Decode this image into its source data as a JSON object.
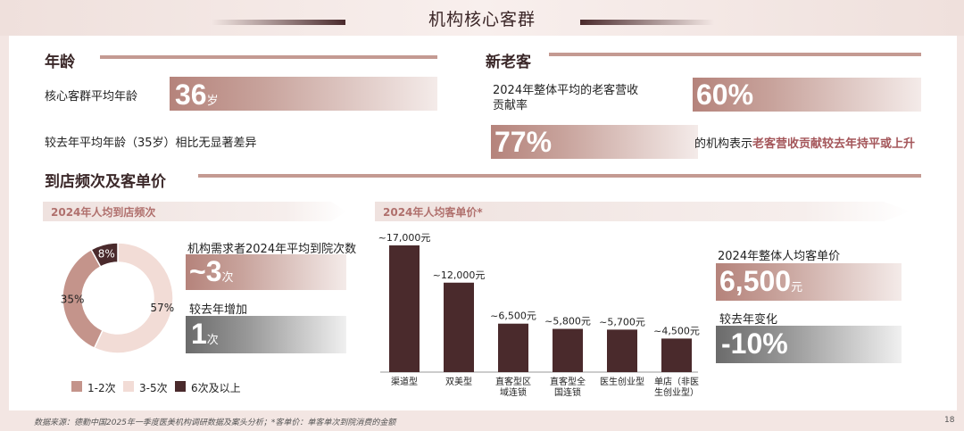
{
  "header": {
    "title": "机构核心客群"
  },
  "age": {
    "title": "年龄",
    "avg_label": "核心客群平均年龄",
    "avg_value": "36",
    "avg_unit": "岁",
    "compare_text": "较去年平均年龄（35岁）相比无显著差异"
  },
  "new_old": {
    "title": "新老客",
    "contribution_label_1": "2024年整体平均的老客营收",
    "contribution_label_2": "贡献率",
    "contribution_value": "60%",
    "share_value": "77%",
    "share_text_prefix": "的机构表示",
    "share_text_highlight": "老客营收贡献较去年持平或上升"
  },
  "visits_price": {
    "title": "到店频次及客单价",
    "freq_subhead": "2024年人均到店频次",
    "price_subhead": "2024年人均客单价*",
    "freq_need_label": "机构需求者2024年平均到院次数",
    "freq_need_value": "~3",
    "freq_need_unit": "次",
    "freq_increase_label": "较去年增加",
    "freq_increase_value": "1",
    "freq_increase_unit": "次",
    "price_overall_label": "2024年整体人均客单价",
    "price_overall_value": "6,500",
    "price_overall_unit": "元",
    "price_change_label": "较去年变化",
    "price_change_value": "-10%"
  },
  "colors": {
    "dark": "#4a2a2c",
    "mid": "#c4948b",
    "light": "#f0d8d2",
    "accent": "#a4565a"
  },
  "chart_data": [
    {
      "type": "pie",
      "title": "2024年人均到店频次",
      "categories": [
        "1-2次",
        "3-5次",
        "6次及以上"
      ],
      "values": [
        35,
        57,
        8
      ],
      "value_labels": [
        "35%",
        "57%",
        "8%"
      ],
      "colors": [
        "#c4948b",
        "#f2dcd6",
        "#4a2a2c"
      ],
      "legend": "bottom"
    },
    {
      "type": "bar",
      "title": "2024年人均客单价*",
      "categories": [
        "渠道型",
        "双美型",
        "直客型区域连锁",
        "直客型全国连锁",
        "医生创业型",
        "单店（非医生创业型）"
      ],
      "category_lines": [
        [
          "渠道型"
        ],
        [
          "双美型"
        ],
        [
          "直客型区",
          "域连锁"
        ],
        [
          "直客型全",
          "国连锁"
        ],
        [
          "医生创业型"
        ],
        [
          "单店（非医",
          "生创业型）"
        ]
      ],
      "values": [
        17000,
        12000,
        6500,
        5800,
        5700,
        4500
      ],
      "value_labels": [
        "~17,000元",
        "~12,000元",
        "~6,500元",
        "~5,800元",
        "~5,700元",
        "~4,500元"
      ],
      "color": "#4a2a2c"
    }
  ],
  "footer": {
    "source": "数据来源：德勤中国2025年一季度医美机构调研数据及案头分析；*客单价：单客单次到院消费的金额",
    "page": "18"
  }
}
